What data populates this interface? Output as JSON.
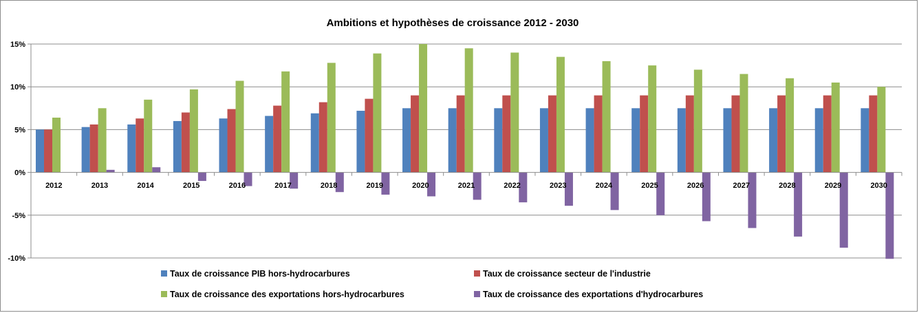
{
  "chart_data": {
    "type": "bar",
    "title": "Ambitions et hypothèses de croissance 2012 - 2030",
    "xlabel": "",
    "ylabel": "",
    "ylim": [
      -10,
      15
    ],
    "yticks": [
      "15%",
      "10%",
      "5%",
      "0%",
      "-5%",
      "-10%"
    ],
    "ytick_values": [
      15,
      10,
      5,
      0,
      -5,
      -10
    ],
    "grid": "horizontal",
    "legend_position": "bottom",
    "categories": [
      "2012",
      "2013",
      "2014",
      "2015",
      "2016",
      "2017",
      "2018",
      "2019",
      "2020",
      "2021",
      "2022",
      "2023",
      "2024",
      "2025",
      "2026",
      "2027",
      "2028",
      "2029",
      "2030"
    ],
    "series": [
      {
        "name": "Taux de croissance PIB hors-hydrocarbures",
        "color": "#4f81bd",
        "values": [
          5.0,
          5.3,
          5.6,
          6.0,
          6.3,
          6.6,
          6.9,
          7.2,
          7.5,
          7.5,
          7.5,
          7.5,
          7.5,
          7.5,
          7.5,
          7.5,
          7.5,
          7.5,
          7.5
        ]
      },
      {
        "name": "Taux de croissance secteur de l'industrie",
        "color": "#c0504d",
        "values": [
          5.0,
          5.6,
          6.3,
          7.0,
          7.4,
          7.8,
          8.2,
          8.6,
          9.0,
          9.0,
          9.0,
          9.0,
          9.0,
          9.0,
          9.0,
          9.0,
          9.0,
          9.0,
          9.0
        ]
      },
      {
        "name": "Taux de croissance des exportations hors-hydrocarbures",
        "color": "#9bbb59",
        "values": [
          6.4,
          7.5,
          8.5,
          9.7,
          10.7,
          11.8,
          12.8,
          13.9,
          15.0,
          14.5,
          14.0,
          13.5,
          13.0,
          12.5,
          12.0,
          11.5,
          11.0,
          10.5,
          10.0
        ]
      },
      {
        "name": "Taux de croissance des exportations d'hydrocarbures",
        "color": "#8064a2",
        "values": [
          0.0,
          0.3,
          0.6,
          -1.0,
          -1.6,
          -1.9,
          -2.3,
          -2.6,
          -2.8,
          -3.2,
          -3.5,
          -3.9,
          -4.4,
          -5.0,
          -5.7,
          -6.5,
          -7.5,
          -8.8,
          -10.1
        ]
      }
    ]
  }
}
